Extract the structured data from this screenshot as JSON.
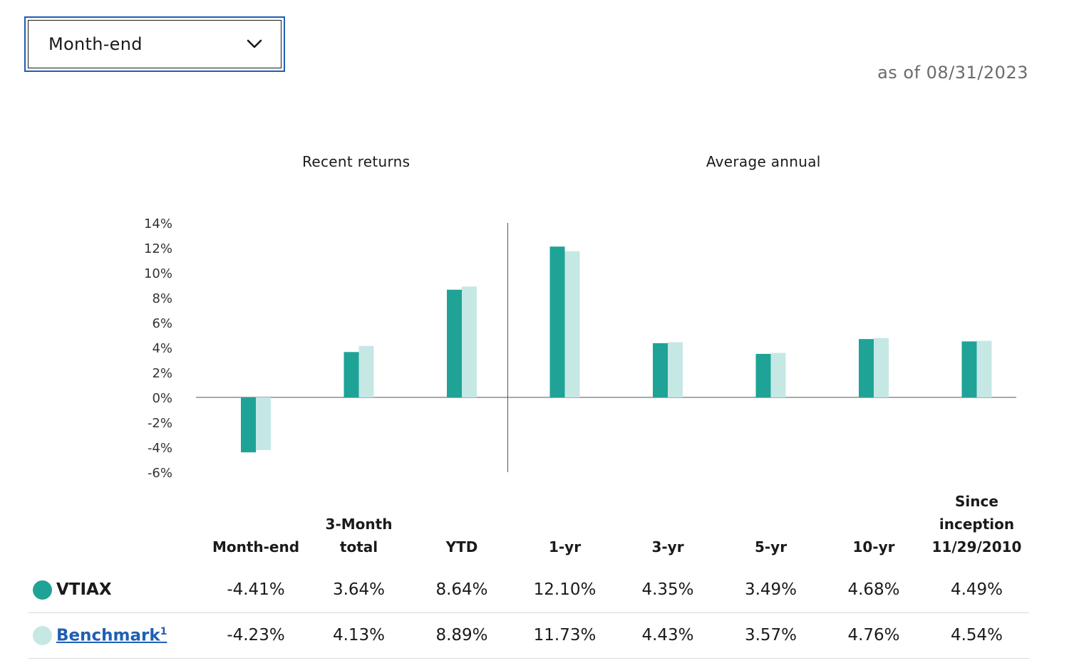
{
  "selector": {
    "value": "Month-end"
  },
  "as_of": "as of 08/31/2023",
  "colors": {
    "fund": "#1fa396",
    "benchmark": "#c5e8e5",
    "axis": "#555555"
  },
  "chart_data": {
    "type": "bar",
    "groups": [
      {
        "label": "Recent returns",
        "categories": [
          "Month-end",
          "3-Month total",
          "YTD"
        ]
      },
      {
        "label": "Average annual",
        "categories": [
          "1-yr",
          "3-yr",
          "5-yr",
          "10-yr",
          "Since inception 11/29/2010"
        ]
      }
    ],
    "categories": [
      "Month-end",
      "3-Month total",
      "YTD",
      "1-yr",
      "3-yr",
      "5-yr",
      "10-yr",
      "Since inception 11/29/2010"
    ],
    "series": [
      {
        "name": "VTIAX",
        "values": [
          -4.41,
          3.64,
          8.64,
          12.1,
          4.35,
          3.49,
          4.68,
          4.49
        ]
      },
      {
        "name": "Benchmark",
        "values": [
          -4.23,
          4.13,
          8.89,
          11.73,
          4.43,
          3.57,
          4.76,
          4.54
        ]
      }
    ],
    "ylim": [
      -6,
      14
    ],
    "yticks": [
      "14%",
      "12%",
      "10%",
      "8%",
      "6%",
      "4%",
      "2%",
      "0%",
      "-2%",
      "-4%",
      "-6%"
    ],
    "ytick_values": [
      14,
      12,
      10,
      8,
      6,
      4,
      2,
      0,
      -2,
      -4,
      -6
    ]
  },
  "table": {
    "headers": [
      [
        "Month-end"
      ],
      [
        "3-Month",
        "total"
      ],
      [
        "YTD"
      ],
      [
        "1-yr"
      ],
      [
        "3-yr"
      ],
      [
        "5-yr"
      ],
      [
        "10-yr"
      ],
      [
        "Since",
        "inception",
        "11/29/2010"
      ]
    ],
    "rows": [
      {
        "name": "VTIAX",
        "superscript": "",
        "values": [
          "-4.41%",
          "3.64%",
          "8.64%",
          "12.10%",
          "4.35%",
          "3.49%",
          "4.68%",
          "4.49%"
        ]
      },
      {
        "name": "Benchmark",
        "superscript": "1",
        "values": [
          "-4.23%",
          "4.13%",
          "8.89%",
          "11.73%",
          "4.43%",
          "3.57%",
          "4.76%",
          "4.54%"
        ]
      }
    ]
  }
}
